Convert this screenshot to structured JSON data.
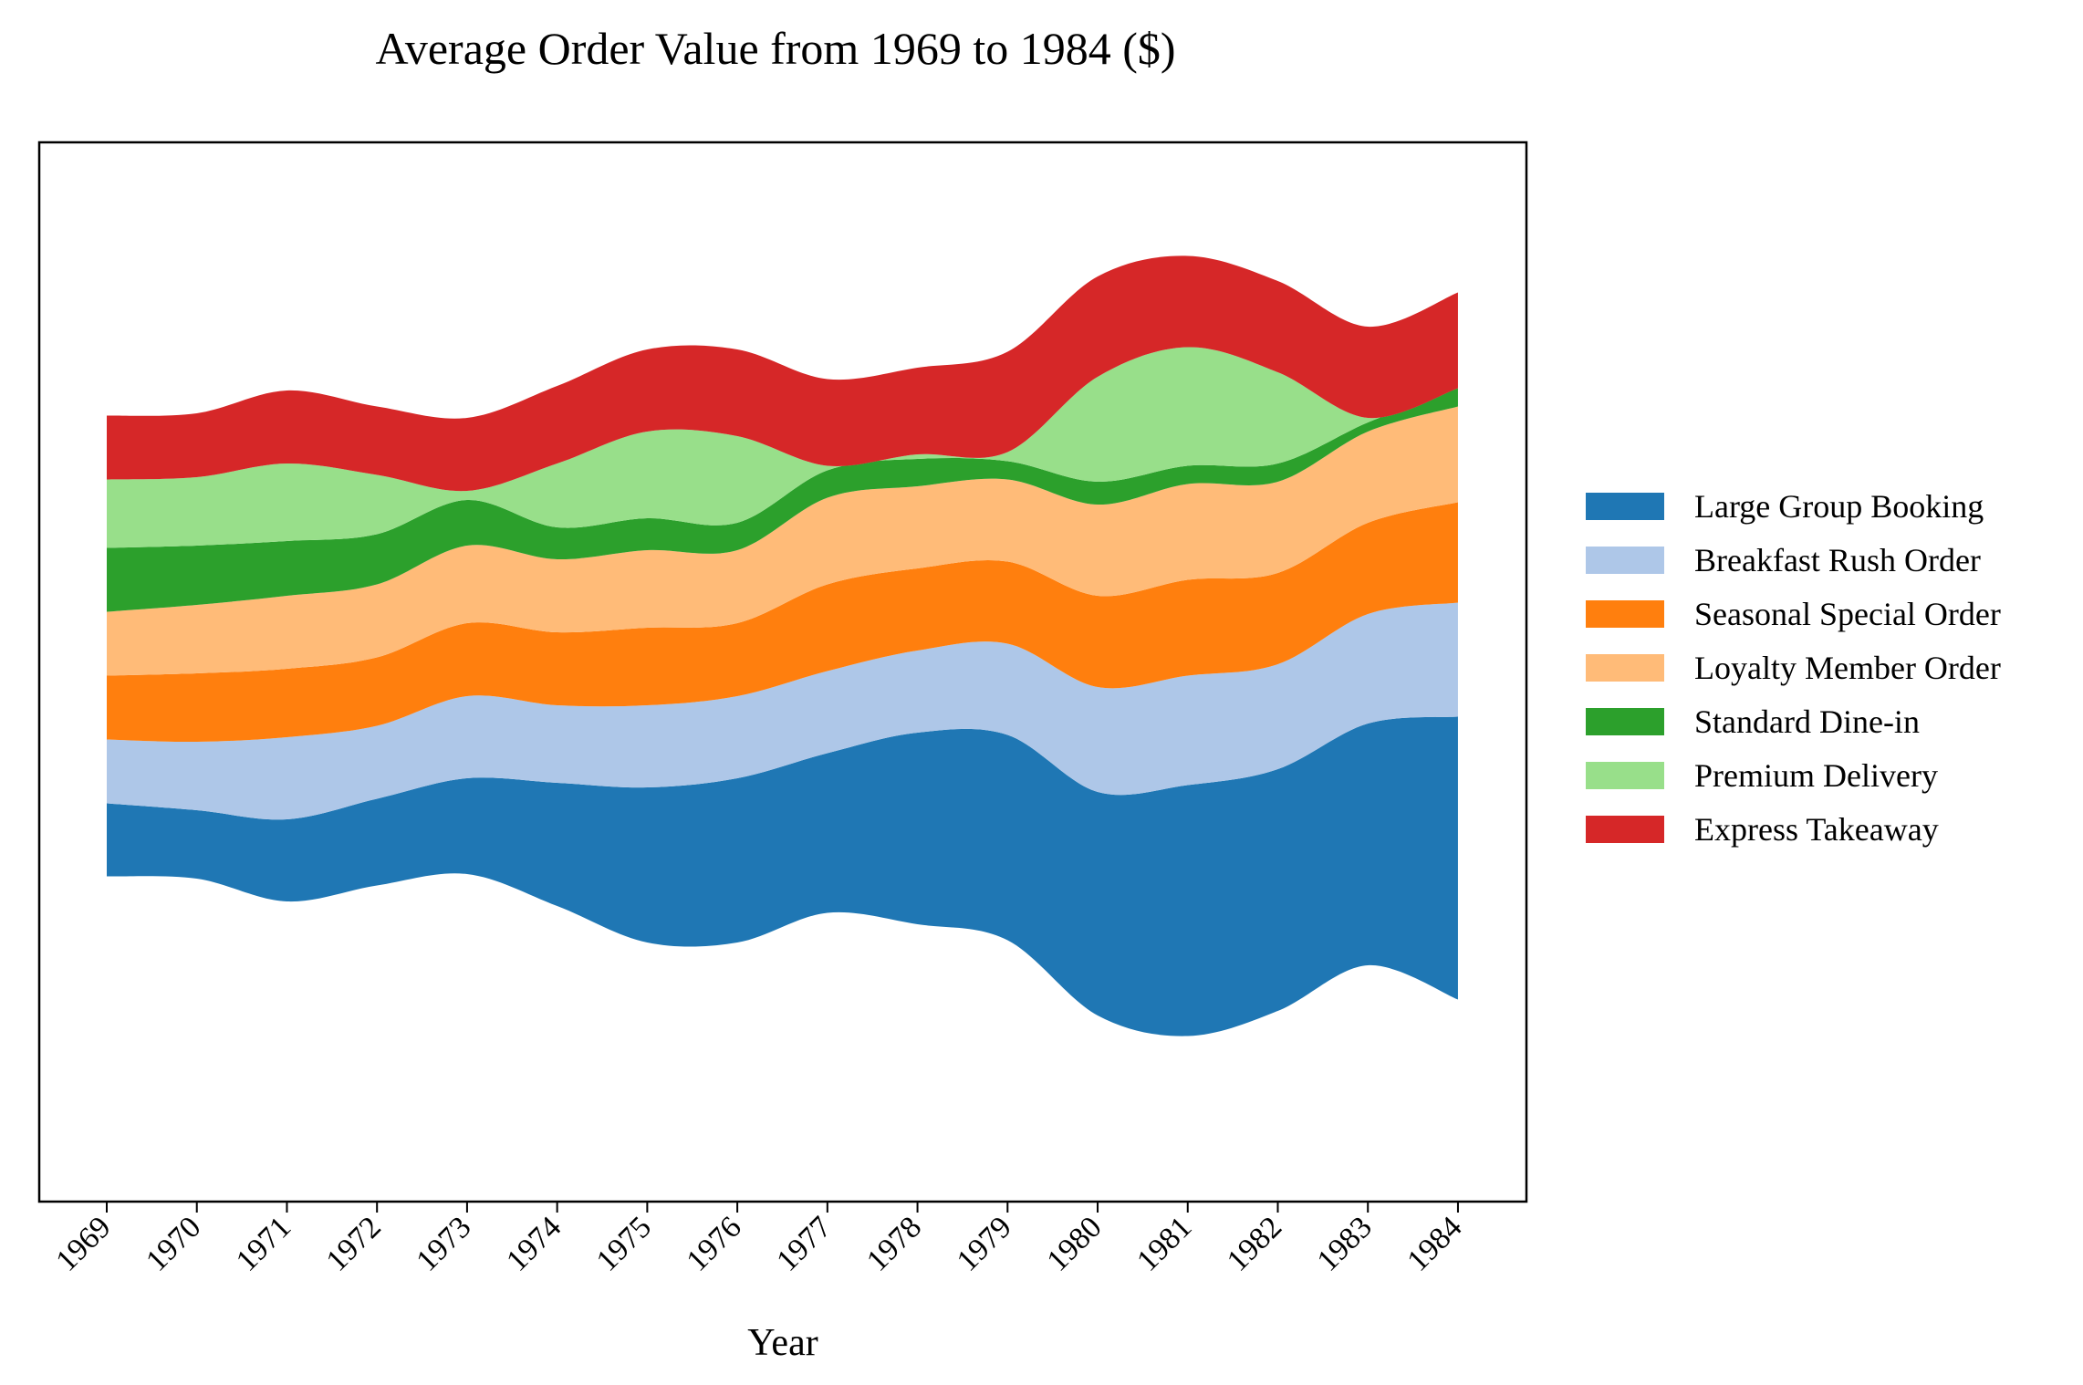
{
  "chart_data": {
    "type": "area",
    "subtype": "streamgraph",
    "title": "Average Order Value from 1969 to 1984 ($)",
    "xlabel": "Year",
    "ylabel": "",
    "x": [
      1969,
      1970,
      1971,
      1972,
      1973,
      1974,
      1975,
      1976,
      1977,
      1978,
      1979,
      1980,
      1981,
      1982,
      1983,
      1984
    ],
    "x_tick_labels": [
      "1969",
      "1970",
      "1971",
      "1972",
      "1973",
      "1974",
      "1975",
      "1976",
      "1977",
      "1978",
      "1979",
      "1980",
      "1981",
      "1982",
      "1983",
      "1984"
    ],
    "baseline": "symmetric (centered stream)",
    "y_axis_visible": false,
    "grid": false,
    "legend_position": "right",
    "series": [
      {
        "name": "Large Group Booking",
        "color": "#1f77b4",
        "values": [
          16,
          15,
          18,
          19,
          21,
          27,
          34,
          36,
          35,
          42,
          45,
          49,
          55,
          53,
          53,
          62
        ]
      },
      {
        "name": "Breakfast Rush Order",
        "color": "#aec7e8",
        "values": [
          14,
          15,
          18,
          16,
          18,
          17,
          18,
          18,
          18,
          18,
          20,
          23,
          24,
          23,
          24,
          25
        ]
      },
      {
        "name": "Seasonal Special Order",
        "color": "#ff7f0e",
        "values": [
          14,
          15,
          15,
          15,
          16,
          16,
          17,
          16,
          19,
          18,
          18,
          20,
          21,
          20,
          20,
          22
        ]
      },
      {
        "name": "Loyalty Member Order",
        "color": "#ffbb78",
        "values": [
          14,
          15,
          16,
          16,
          17,
          16,
          17,
          16,
          19,
          18,
          18,
          20,
          21,
          20,
          20,
          21
        ]
      },
      {
        "name": "Standard Dine-in",
        "color": "#2ca02c",
        "values": [
          14,
          13,
          12,
          11,
          10,
          7,
          7,
          6,
          6,
          6,
          4,
          5,
          4,
          4,
          2,
          4
        ]
      },
      {
        "name": "Premium Delivery",
        "color": "#98df8a",
        "values": [
          15,
          15,
          17,
          13,
          2,
          14,
          19,
          19,
          1,
          1,
          2,
          23,
          26,
          20,
          1,
          0
        ]
      },
      {
        "name": "Express Takeaway",
        "color": "#d62728",
        "values": [
          14,
          14,
          16,
          15,
          16,
          17,
          18,
          19,
          19,
          19,
          22,
          22,
          20,
          20,
          20,
          21
        ]
      }
    ]
  }
}
